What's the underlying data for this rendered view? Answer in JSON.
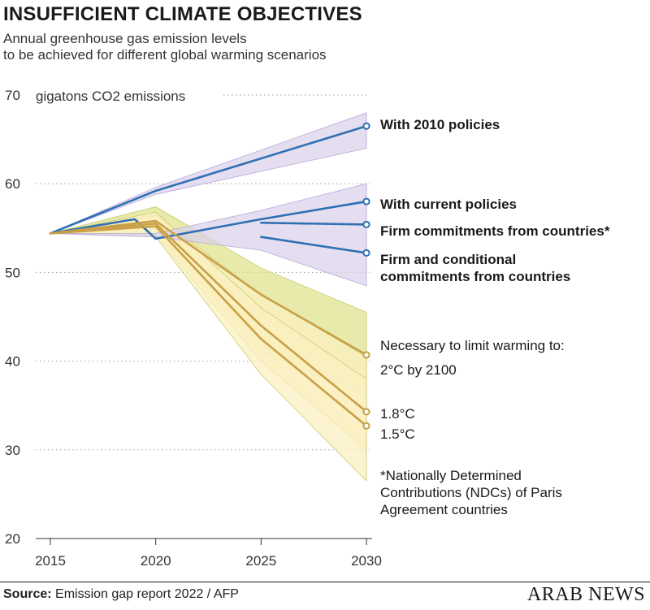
{
  "header": {
    "title": "INSUFFICIENT CLIMATE OBJECTIVES",
    "subtitle_line1": "Annual greenhouse gas emission levels",
    "subtitle_line2": "to be achieved for different global warming scenarios"
  },
  "footer": {
    "source_label": "Source:",
    "source_text": "Emission gap report 2022 / AFP",
    "brand": "ARAB NEWS"
  },
  "colors": {
    "policy_line": "#2f6fb3",
    "policy_band": "#d9d0ea",
    "target_line": "#c9a048",
    "target_band_outer": "#dfe38f",
    "target_band_inner": "#fbf0c0",
    "grid": "#9a9a9a"
  },
  "chart_data": {
    "type": "line",
    "unit_label": "gigatons CO2 emissions",
    "xlim": [
      2015,
      2030
    ],
    "ylim": [
      20,
      70
    ],
    "x_ticks": [
      2015,
      2020,
      2025,
      2030
    ],
    "y_ticks": [
      20,
      30,
      40,
      50,
      60,
      70
    ],
    "grid": "horizontal dotted",
    "series": [
      {
        "name": "With 2010 policies",
        "group": "policy",
        "points": [
          [
            2015,
            54.4
          ],
          [
            2020,
            59.2
          ],
          [
            2030,
            66.5
          ]
        ],
        "band": {
          "x": [
            2015,
            2020,
            2030
          ],
          "low": [
            54.4,
            58.8,
            64.0
          ],
          "high": [
            54.4,
            59.6,
            68.0
          ]
        }
      },
      {
        "name": "With current policies",
        "group": "policy",
        "points": [
          [
            2015,
            54.4
          ],
          [
            2019,
            56.0
          ],
          [
            2020,
            53.8
          ],
          [
            2025,
            56.0
          ],
          [
            2030,
            58.0
          ]
        ],
        "band": {
          "x": [
            2015,
            2020,
            2025,
            2030
          ],
          "low": [
            54.4,
            54.0,
            52.5,
            48.5
          ],
          "high": [
            54.4,
            54.4,
            57.0,
            60.0
          ]
        }
      },
      {
        "name": "Firm commitments from countries*",
        "group": "policy",
        "points": [
          [
            2025,
            55.6
          ],
          [
            2030,
            55.4
          ]
        ]
      },
      {
        "name": "Firm and conditional commitments from countries",
        "group": "policy",
        "points": [
          [
            2025,
            54.0
          ],
          [
            2030,
            52.2
          ]
        ]
      },
      {
        "name": "2°C by 2100",
        "group": "target",
        "points": [
          [
            2015,
            54.4
          ],
          [
            2020,
            55.8
          ],
          [
            2025,
            47.5
          ],
          [
            2030,
            40.7
          ]
        ],
        "band": {
          "x": [
            2015,
            2020,
            2025,
            2030
          ],
          "low": [
            54.4,
            54.5,
            41.0,
            36.0
          ],
          "high": [
            54.4,
            57.4,
            50.5,
            45.5
          ]
        }
      },
      {
        "name": "1.8°C",
        "group": "target",
        "points": [
          [
            2015,
            54.4
          ],
          [
            2020,
            55.5
          ],
          [
            2025,
            44.0
          ],
          [
            2030,
            34.3
          ]
        ],
        "band": {
          "x": [
            2015,
            2020,
            2025,
            2030
          ],
          "low": [
            54.4,
            54.2,
            40.0,
            30.0
          ],
          "high": [
            54.4,
            56.4,
            47.5,
            40.5
          ]
        }
      },
      {
        "name": "1.5°C",
        "group": "target",
        "points": [
          [
            2015,
            54.4
          ],
          [
            2020,
            55.2
          ],
          [
            2025,
            42.5
          ],
          [
            2030,
            32.7
          ]
        ],
        "band": {
          "x": [
            2015,
            2020,
            2025,
            2030
          ],
          "low": [
            54.4,
            54.0,
            38.5,
            26.5
          ],
          "high": [
            54.4,
            56.8,
            46.0,
            38.0
          ]
        }
      }
    ],
    "annotations": {
      "label_2010": "With 2010 policies",
      "label_current": "With current policies",
      "label_firm": "Firm commitments from countries*",
      "label_cond_1": "Firm and conditional",
      "label_cond_2": "commitments from countries",
      "necessary": "Necessary to limit warming to:",
      "label_2c": "2°C by 2100",
      "label_18": "1.8°C",
      "label_15": "1.5°C",
      "footnote_1": "*Nationally Determined",
      "footnote_2": "Contributions (NDCs) of Paris",
      "footnote_3": "Agreement countries"
    }
  }
}
